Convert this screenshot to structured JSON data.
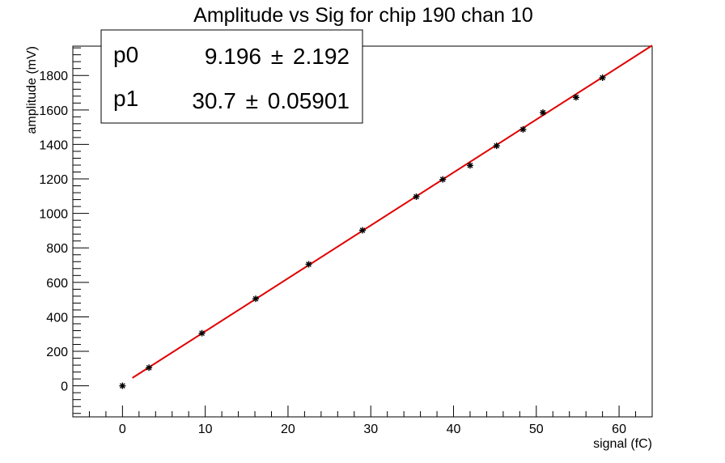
{
  "chart_data": {
    "type": "scatter",
    "title": "Amplitude vs Sig for chip 190 chan 10",
    "xlabel": "signal (fC)",
    "ylabel": "amplitude (mV)",
    "xlim": [
      -6,
      64
    ],
    "ylim": [
      -180,
      1970
    ],
    "x_ticks": [
      0,
      10,
      20,
      30,
      40,
      50,
      60
    ],
    "y_ticks": [
      0,
      200,
      400,
      600,
      800,
      1000,
      1200,
      1400,
      1600,
      1800
    ],
    "x_tick_labels": [
      "0",
      "10",
      "20",
      "30",
      "40",
      "50",
      "60"
    ],
    "y_tick_labels": [
      "0",
      "200",
      "400",
      "600",
      "800",
      "1000",
      "1200",
      "1400",
      "1600",
      "1800"
    ],
    "grid": false,
    "series": [
      {
        "marker": "asterisk",
        "color": "#000000",
        "x": [
          0.0,
          3.2,
          9.6,
          16.1,
          22.5,
          29.0,
          35.5,
          38.7,
          42.0,
          45.2,
          48.4,
          50.8,
          54.8,
          58.0
        ],
        "y": [
          0,
          105,
          305,
          505,
          705,
          902,
          1097,
          1197,
          1278,
          1392,
          1487,
          1585,
          1673,
          1787
        ]
      }
    ],
    "fit": {
      "color": "#e00000",
      "x_range": [
        1.2,
        64
      ],
      "p0": 9.196,
      "p1": 30.7
    },
    "stats_box": {
      "position": "top-left",
      "rows": [
        {
          "name": "p0",
          "value": "9.196",
          "pm": "±",
          "error": "2.192"
        },
        {
          "name": "p1",
          "value": "30.7",
          "pm": "±",
          "error": "0.05901"
        }
      ]
    }
  }
}
